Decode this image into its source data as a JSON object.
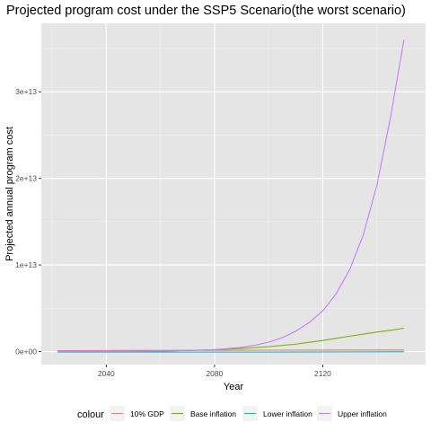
{
  "chart_data": {
    "type": "line",
    "title": "Projected program cost under the SSP5 Scenario(the worst scenario)",
    "xlabel": "Year",
    "ylabel": "Projected annual program cost",
    "xlim": [
      2016,
      2158
    ],
    "ylim": [
      -1500000000000.0,
      37900000000000.0
    ],
    "x_ticks": [
      2040,
      2080,
      2120
    ],
    "x_tick_labels": [
      "2040",
      "2080",
      "2120"
    ],
    "y_ticks": [
      0,
      10000000000000.0,
      20000000000000.0,
      30000000000000.0
    ],
    "y_tick_labels": [
      "0e+00",
      "1e+13",
      "2e+13",
      "3e+13"
    ],
    "grid": true,
    "background": "#e5e5e5",
    "legend": {
      "title": "colour",
      "position": "bottom",
      "items": [
        "10% GDP",
        "Base inflation",
        "Lower inflation",
        "Upper inflation"
      ]
    },
    "series": [
      {
        "name": "10% GDP",
        "color": "#f8766d",
        "x": [
          2022,
          2040,
          2060,
          2080,
          2100,
          2120,
          2140,
          2150
        ],
        "y": [
          100000000000.0,
          120000000000.0,
          140000000000.0,
          150000000000.0,
          160000000000.0,
          170000000000.0,
          180000000000.0,
          180000000000.0
        ]
      },
      {
        "name": "Base inflation",
        "color": "#7cae00",
        "x": [
          2022,
          2030,
          2040,
          2050,
          2060,
          2070,
          2080,
          2090,
          2100,
          2110,
          2120,
          2130,
          2140,
          2145,
          2150
        ],
        "y": [
          2000000000.0,
          6000000000.0,
          14000000000.0,
          32000000000.0,
          65000000000.0,
          125000000000.0,
          220000000000.0,
          360000000000.0,
          560000000000.0,
          860000000000.0,
          1280000000000.0,
          1780000000000.0,
          2250000000000.0,
          2450000000000.0,
          2700000000000.0
        ]
      },
      {
        "name": "Lower inflation",
        "color": "#00bfc4",
        "x": [
          2022,
          2040,
          2060,
          2080,
          2100,
          2120,
          2140,
          2150
        ],
        "y": [
          -60000000000.0,
          -60000000000.0,
          -60000000000.0,
          -50000000000.0,
          -50000000000.0,
          -40000000000.0,
          -30000000000.0,
          -20000000000.0
        ]
      },
      {
        "name": "Upper inflation",
        "color": "#c77cff",
        "x": [
          2022,
          2030,
          2040,
          2050,
          2060,
          2070,
          2080,
          2090,
          2095,
          2100,
          2105,
          2110,
          2115,
          2120,
          2125,
          2130,
          2135,
          2140,
          2145,
          2150
        ],
        "y": [
          2000000000.0,
          6000000000.0,
          15000000000.0,
          35000000000.0,
          75000000000.0,
          130000000000.0,
          210000000000.0,
          490000000000.0,
          740000000000.0,
          1080000000000.0,
          1600000000000.0,
          2350000000000.0,
          3350000000000.0,
          4700000000000.0,
          6700000000000.0,
          9500000000000.0,
          13500000000000.0,
          19200000000000.0,
          27000000000000.0,
          36000000000000.0
        ]
      }
    ]
  }
}
